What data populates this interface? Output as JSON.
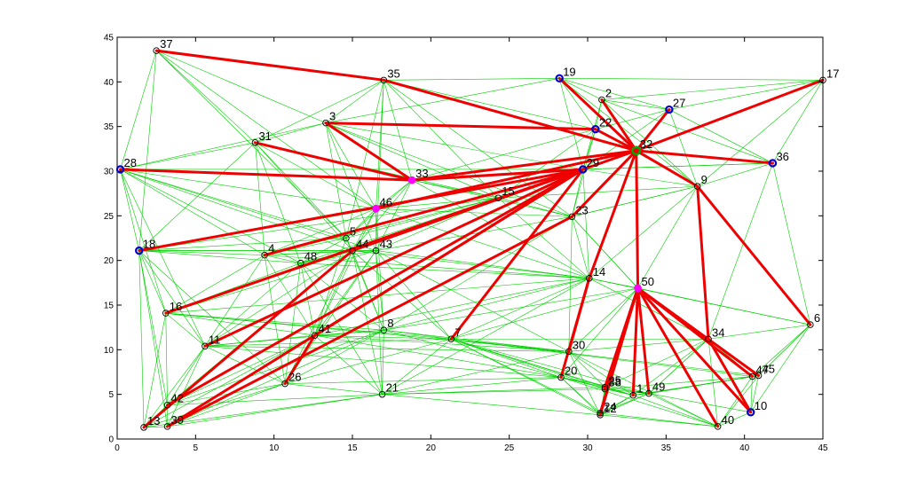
{
  "chart_data": {
    "type": "scatter",
    "title": "",
    "xlabel": "",
    "ylabel": "",
    "xlim": [
      0,
      45
    ],
    "ylim": [
      0,
      45
    ],
    "xticks": [
      "0",
      "5",
      "10",
      "15",
      "20",
      "25",
      "30",
      "35",
      "40",
      "45"
    ],
    "yticks": [
      "0",
      "5",
      "10",
      "15",
      "20",
      "25",
      "30",
      "35",
      "40",
      "45"
    ],
    "grid": false,
    "colors": {
      "background_edge": "#00d000",
      "path_edge": "#ee0000",
      "node": "#000000",
      "head": "#0000cc",
      "relay": "#ff00ff",
      "sink": "#00aa00"
    },
    "nodes": [
      {
        "label": "1",
        "x": 32.9,
        "y": 4.9,
        "role": "normal"
      },
      {
        "label": "2",
        "x": 30.9,
        "y": 38.0,
        "role": "normal"
      },
      {
        "label": "3",
        "x": 13.3,
        "y": 35.4,
        "role": "normal"
      },
      {
        "label": "4",
        "x": 9.4,
        "y": 20.6,
        "role": "normal"
      },
      {
        "label": "5",
        "x": 14.6,
        "y": 22.5,
        "role": "normal"
      },
      {
        "label": "6",
        "x": 44.2,
        "y": 12.8,
        "role": "normal"
      },
      {
        "label": "7",
        "x": 21.3,
        "y": 11.2,
        "role": "normal"
      },
      {
        "label": "8",
        "x": 17.0,
        "y": 12.2,
        "role": "normal"
      },
      {
        "label": "9",
        "x": 37.0,
        "y": 28.3,
        "role": "normal"
      },
      {
        "label": "10",
        "x": 40.4,
        "y": 3.0,
        "role": "head"
      },
      {
        "label": "11",
        "x": 5.6,
        "y": 10.4,
        "role": "normal"
      },
      {
        "label": "12",
        "x": 30.8,
        "y": 2.7,
        "role": "normal"
      },
      {
        "label": "13",
        "x": 1.7,
        "y": 1.3,
        "role": "normal"
      },
      {
        "label": "14",
        "x": 30.1,
        "y": 18.0,
        "role": "normal"
      },
      {
        "label": "15",
        "x": 24.3,
        "y": 27.0,
        "role": "normal"
      },
      {
        "label": "16",
        "x": 3.1,
        "y": 14.1,
        "role": "normal"
      },
      {
        "label": "17",
        "x": 45.0,
        "y": 40.2,
        "role": "normal"
      },
      {
        "label": "18",
        "x": 1.4,
        "y": 21.1,
        "role": "head"
      },
      {
        "label": "19",
        "x": 28.2,
        "y": 40.4,
        "role": "head"
      },
      {
        "label": "20",
        "x": 28.3,
        "y": 6.9,
        "role": "normal"
      },
      {
        "label": "21",
        "x": 16.9,
        "y": 5.0,
        "role": "normal"
      },
      {
        "label": "22",
        "x": 30.5,
        "y": 34.7,
        "role": "head"
      },
      {
        "label": "23",
        "x": 29.0,
        "y": 24.9,
        "role": "normal"
      },
      {
        "label": "24",
        "x": 30.8,
        "y": 2.9,
        "role": "normal"
      },
      {
        "label": "25",
        "x": 31.1,
        "y": 5.8,
        "role": "normal"
      },
      {
        "label": "26",
        "x": 10.7,
        "y": 6.2,
        "role": "normal"
      },
      {
        "label": "27",
        "x": 35.2,
        "y": 36.9,
        "role": "head"
      },
      {
        "label": "28",
        "x": 0.2,
        "y": 30.2,
        "role": "head"
      },
      {
        "label": "29",
        "x": 29.7,
        "y": 30.2,
        "role": "head"
      },
      {
        "label": "30",
        "x": 28.8,
        "y": 9.8,
        "role": "normal"
      },
      {
        "label": "31",
        "x": 8.8,
        "y": 33.2,
        "role": "normal"
      },
      {
        "label": "32",
        "x": 33.1,
        "y": 32.3,
        "role": "sink"
      },
      {
        "label": "33",
        "x": 18.8,
        "y": 29.0,
        "role": "relay"
      },
      {
        "label": "34",
        "x": 37.7,
        "y": 11.2,
        "role": "normal"
      },
      {
        "label": "35",
        "x": 17.0,
        "y": 40.2,
        "role": "normal"
      },
      {
        "label": "36",
        "x": 41.8,
        "y": 30.9,
        "role": "head"
      },
      {
        "label": "37",
        "x": 2.5,
        "y": 43.5,
        "role": "normal"
      },
      {
        "label": "38",
        "x": 31.1,
        "y": 5.6,
        "role": "normal"
      },
      {
        "label": "39",
        "x": 3.2,
        "y": 1.4,
        "role": "normal"
      },
      {
        "label": "40",
        "x": 38.3,
        "y": 1.4,
        "role": "normal"
      },
      {
        "label": "41",
        "x": 12.6,
        "y": 11.6,
        "role": "normal"
      },
      {
        "label": "42",
        "x": 3.2,
        "y": 3.8,
        "role": "normal"
      },
      {
        "label": "43",
        "x": 16.5,
        "y": 21.1,
        "role": "normal"
      },
      {
        "label": "44",
        "x": 15.0,
        "y": 21.1,
        "role": "normal"
      },
      {
        "label": "45",
        "x": 40.9,
        "y": 7.1,
        "role": "normal"
      },
      {
        "label": "46",
        "x": 16.5,
        "y": 25.8,
        "role": "relay"
      },
      {
        "label": "47",
        "x": 40.5,
        "y": 7.0,
        "role": "normal"
      },
      {
        "label": "48",
        "x": 11.7,
        "y": 19.7,
        "role": "normal"
      },
      {
        "label": "49",
        "x": 33.9,
        "y": 5.1,
        "role": "normal"
      },
      {
        "label": "50",
        "x": 33.2,
        "y": 16.9,
        "role": "relay"
      }
    ],
    "path_edges": [
      [
        37,
        35
      ],
      [
        35,
        32
      ],
      [
        3,
        22
      ],
      [
        3,
        33
      ],
      [
        28,
        33
      ],
      [
        33,
        29
      ],
      [
        33,
        32
      ],
      [
        31,
        33
      ],
      [
        19,
        32
      ],
      [
        2,
        32
      ],
      [
        22,
        32
      ],
      [
        27,
        32
      ],
      [
        17,
        32
      ],
      [
        36,
        32
      ],
      [
        29,
        32
      ],
      [
        18,
        29
      ],
      [
        4,
        29
      ],
      [
        16,
        29
      ],
      [
        11,
        29
      ],
      [
        42,
        29
      ],
      [
        39,
        29
      ],
      [
        39,
        23
      ],
      [
        46,
        32
      ],
      [
        44,
        29
      ],
      [
        13,
        44
      ],
      [
        9,
        32
      ],
      [
        9,
        34
      ],
      [
        9,
        6
      ],
      [
        34,
        10
      ],
      [
        50,
        32
      ],
      [
        50,
        1
      ],
      [
        50,
        49
      ],
      [
        50,
        25
      ],
      [
        50,
        38
      ],
      [
        50,
        12
      ],
      [
        50,
        24
      ],
      [
        50,
        40
      ],
      [
        50,
        10
      ],
      [
        50,
        47
      ],
      [
        50,
        45
      ],
      [
        23,
        32
      ],
      [
        14,
        32
      ],
      [
        20,
        14
      ],
      [
        30,
        14
      ],
      [
        7,
        29
      ],
      [
        41,
        29
      ],
      [
        26,
        41
      ]
    ],
    "background_edges": [
      [
        37,
        28
      ],
      [
        37,
        18
      ],
      [
        37,
        3
      ],
      [
        37,
        31
      ],
      [
        35,
        19
      ],
      [
        35,
        3
      ],
      [
        35,
        31
      ],
      [
        35,
        33
      ],
      [
        35,
        46
      ],
      [
        35,
        5
      ],
      [
        35,
        43
      ],
      [
        35,
        22
      ],
      [
        35,
        23
      ],
      [
        19,
        2
      ],
      [
        19,
        22
      ],
      [
        19,
        27
      ],
      [
        19,
        3
      ],
      [
        19,
        29
      ],
      [
        19,
        17
      ],
      [
        2,
        27
      ],
      [
        2,
        17
      ],
      [
        2,
        22
      ],
      [
        2,
        29
      ],
      [
        2,
        36
      ],
      [
        27,
        36
      ],
      [
        27,
        17
      ],
      [
        27,
        9
      ],
      [
        27,
        29
      ],
      [
        17,
        36
      ],
      [
        17,
        9
      ],
      [
        36,
        9
      ],
      [
        36,
        6
      ],
      [
        36,
        34
      ],
      [
        36,
        29
      ],
      [
        9,
        23
      ],
      [
        9,
        14
      ],
      [
        9,
        50
      ],
      [
        9,
        6
      ],
      [
        6,
        45
      ],
      [
        6,
        10
      ],
      [
        6,
        34
      ],
      [
        6,
        50
      ],
      [
        6,
        14
      ],
      [
        3,
        31
      ],
      [
        3,
        28
      ],
      [
        3,
        46
      ],
      [
        3,
        5
      ],
      [
        3,
        29
      ],
      [
        3,
        23
      ],
      [
        31,
        28
      ],
      [
        31,
        18
      ],
      [
        31,
        4
      ],
      [
        31,
        46
      ],
      [
        31,
        5
      ],
      [
        31,
        48
      ],
      [
        28,
        18
      ],
      [
        28,
        16
      ],
      [
        28,
        4
      ],
      [
        28,
        46
      ],
      [
        28,
        48
      ],
      [
        28,
        11
      ],
      [
        28,
        5
      ],
      [
        18,
        16
      ],
      [
        18,
        11
      ],
      [
        18,
        42
      ],
      [
        18,
        13
      ],
      [
        18,
        39
      ],
      [
        18,
        4
      ],
      [
        18,
        48
      ],
      [
        18,
        46
      ],
      [
        18,
        26
      ],
      [
        4,
        48
      ],
      [
        4,
        5
      ],
      [
        4,
        46
      ],
      [
        4,
        16
      ],
      [
        4,
        11
      ],
      [
        4,
        44
      ],
      [
        48,
        5
      ],
      [
        48,
        44
      ],
      [
        48,
        43
      ],
      [
        48,
        41
      ],
      [
        48,
        11
      ],
      [
        48,
        26
      ],
      [
        5,
        46
      ],
      [
        5,
        33
      ],
      [
        5,
        44
      ],
      [
        46,
        33
      ],
      [
        46,
        44
      ],
      [
        46,
        43
      ],
      [
        46,
        15
      ],
      [
        46,
        23
      ],
      [
        46,
        14
      ],
      [
        33,
        15
      ],
      [
        33,
        23
      ],
      [
        33,
        22
      ],
      [
        33,
        44
      ],
      [
        33,
        43
      ],
      [
        43,
        44
      ],
      [
        43,
        15
      ],
      [
        43,
        8
      ],
      [
        43,
        7
      ],
      [
        43,
        14
      ],
      [
        43,
        41
      ],
      [
        43,
        21
      ],
      [
        43,
        30
      ],
      [
        44,
        41
      ],
      [
        44,
        8
      ],
      [
        44,
        26
      ],
      [
        44,
        21
      ],
      [
        44,
        7
      ],
      [
        16,
        11
      ],
      [
        16,
        42
      ],
      [
        16,
        13
      ],
      [
        16,
        41
      ],
      [
        16,
        48
      ],
      [
        16,
        8
      ],
      [
        16,
        7
      ],
      [
        16,
        30
      ],
      [
        16,
        14
      ],
      [
        11,
        41
      ],
      [
        11,
        26
      ],
      [
        11,
        42
      ],
      [
        11,
        13
      ],
      [
        11,
        39
      ],
      [
        11,
        8
      ],
      [
        11,
        7
      ],
      [
        11,
        20
      ],
      [
        11,
        30
      ],
      [
        42,
        13
      ],
      [
        42,
        39
      ],
      [
        42,
        26
      ],
      [
        42,
        21
      ],
      [
        42,
        41
      ],
      [
        13,
        39
      ],
      [
        13,
        26
      ],
      [
        13,
        21
      ],
      [
        39,
        21
      ],
      [
        39,
        26
      ],
      [
        39,
        41
      ],
      [
        26,
        21
      ],
      [
        26,
        41
      ],
      [
        26,
        8
      ],
      [
        26,
        7
      ],
      [
        26,
        20
      ],
      [
        21,
        8
      ],
      [
        21,
        7
      ],
      [
        21,
        20
      ],
      [
        21,
        12
      ],
      [
        21,
        25
      ],
      [
        21,
        38
      ],
      [
        21,
        41
      ],
      [
        41,
        8
      ],
      [
        41,
        7
      ],
      [
        41,
        30
      ],
      [
        41,
        20
      ],
      [
        8,
        7
      ],
      [
        8,
        30
      ],
      [
        8,
        20
      ],
      [
        8,
        14
      ],
      [
        8,
        23
      ],
      [
        7,
        30
      ],
      [
        7,
        20
      ],
      [
        7,
        14
      ],
      [
        7,
        25
      ],
      [
        7,
        38
      ],
      [
        7,
        1
      ],
      [
        7,
        49
      ],
      [
        7,
        34
      ],
      [
        7,
        47
      ],
      [
        7,
        45
      ],
      [
        7,
        12
      ],
      [
        7,
        24
      ],
      [
        30,
        20
      ],
      [
        30,
        14
      ],
      [
        30,
        50
      ],
      [
        30,
        25
      ],
      [
        30,
        1
      ],
      [
        30,
        34
      ],
      [
        30,
        12
      ],
      [
        30,
        40
      ],
      [
        20,
        12
      ],
      [
        20,
        24
      ],
      [
        20,
        25
      ],
      [
        20,
        50
      ],
      [
        20,
        1
      ],
      [
        20,
        49
      ],
      [
        20,
        40
      ],
      [
        12,
        24
      ],
      [
        12,
        25
      ],
      [
        12,
        38
      ],
      [
        12,
        1
      ],
      [
        12,
        49
      ],
      [
        12,
        40
      ],
      [
        24,
        1
      ],
      [
        24,
        49
      ],
      [
        24,
        40
      ],
      [
        25,
        38
      ],
      [
        25,
        1
      ],
      [
        25,
        49
      ],
      [
        25,
        34
      ],
      [
        38,
        1
      ],
      [
        38,
        49
      ],
      [
        38,
        47
      ],
      [
        1,
        49
      ],
      [
        1,
        40
      ],
      [
        1,
        47
      ],
      [
        1,
        45
      ],
      [
        49,
        47
      ],
      [
        49,
        45
      ],
      [
        49,
        10
      ],
      [
        49,
        40
      ],
      [
        49,
        34
      ],
      [
        40,
        10
      ],
      [
        40,
        47
      ],
      [
        40,
        45
      ],
      [
        40,
        34
      ],
      [
        10,
        47
      ],
      [
        10,
        45
      ],
      [
        47,
        45
      ],
      [
        47,
        34
      ],
      [
        45,
        34
      ],
      [
        34,
        50
      ],
      [
        34,
        14
      ],
      [
        34,
        49
      ],
      [
        34,
        1
      ],
      [
        14,
        23
      ],
      [
        14,
        50
      ],
      [
        14,
        29
      ],
      [
        14,
        15
      ],
      [
        14,
        48
      ],
      [
        14,
        4
      ],
      [
        23,
        29
      ],
      [
        23,
        15
      ],
      [
        23,
        50
      ],
      [
        23,
        22
      ],
      [
        23,
        9
      ],
      [
        29,
        22
      ],
      [
        29,
        15
      ],
      [
        29,
        9
      ],
      [
        29,
        36
      ],
      [
        22,
        27
      ],
      [
        22,
        9
      ],
      [
        22,
        15
      ],
      [
        15,
        44
      ],
      [
        15,
        5
      ],
      [
        15,
        48
      ],
      [
        15,
        4
      ],
      [
        15,
        18
      ],
      [
        15,
        9
      ],
      [
        50,
        49
      ],
      [
        50,
        14
      ],
      [
        50,
        34
      ],
      [
        50,
        23
      ],
      [
        6,
        47
      ],
      [
        6,
        45
      ],
      [
        10,
        34
      ],
      [
        13,
        42
      ],
      [
        28,
        29
      ],
      [
        18,
        5
      ],
      [
        18,
        43
      ],
      [
        31,
        15
      ],
      [
        3,
        15
      ],
      [
        3,
        43
      ],
      [
        4,
        43
      ],
      [
        16,
        44
      ],
      [
        16,
        43
      ],
      [
        11,
        44
      ],
      [
        42,
        44
      ],
      [
        42,
        8
      ],
      [
        39,
        8
      ],
      [
        13,
        41
      ],
      [
        26,
        43
      ],
      [
        21,
        14
      ],
      [
        21,
        30
      ],
      [
        41,
        14
      ],
      [
        8,
        50
      ],
      [
        7,
        50
      ],
      [
        30,
        23
      ],
      [
        20,
        14
      ],
      [
        19,
        9
      ],
      [
        2,
        9
      ],
      [
        35,
        15
      ],
      [
        37,
        46
      ],
      [
        37,
        5
      ],
      [
        28,
        43
      ],
      [
        28,
        44
      ],
      [
        18,
        44
      ],
      [
        31,
        44
      ],
      [
        33,
        14
      ],
      [
        46,
        8
      ],
      [
        46,
        41
      ],
      [
        5,
        41
      ],
      [
        5,
        8
      ],
      [
        44,
        14
      ],
      [
        43,
        23
      ],
      [
        48,
        8
      ],
      [
        48,
        21
      ],
      [
        4,
        41
      ],
      [
        4,
        26
      ]
    ]
  }
}
